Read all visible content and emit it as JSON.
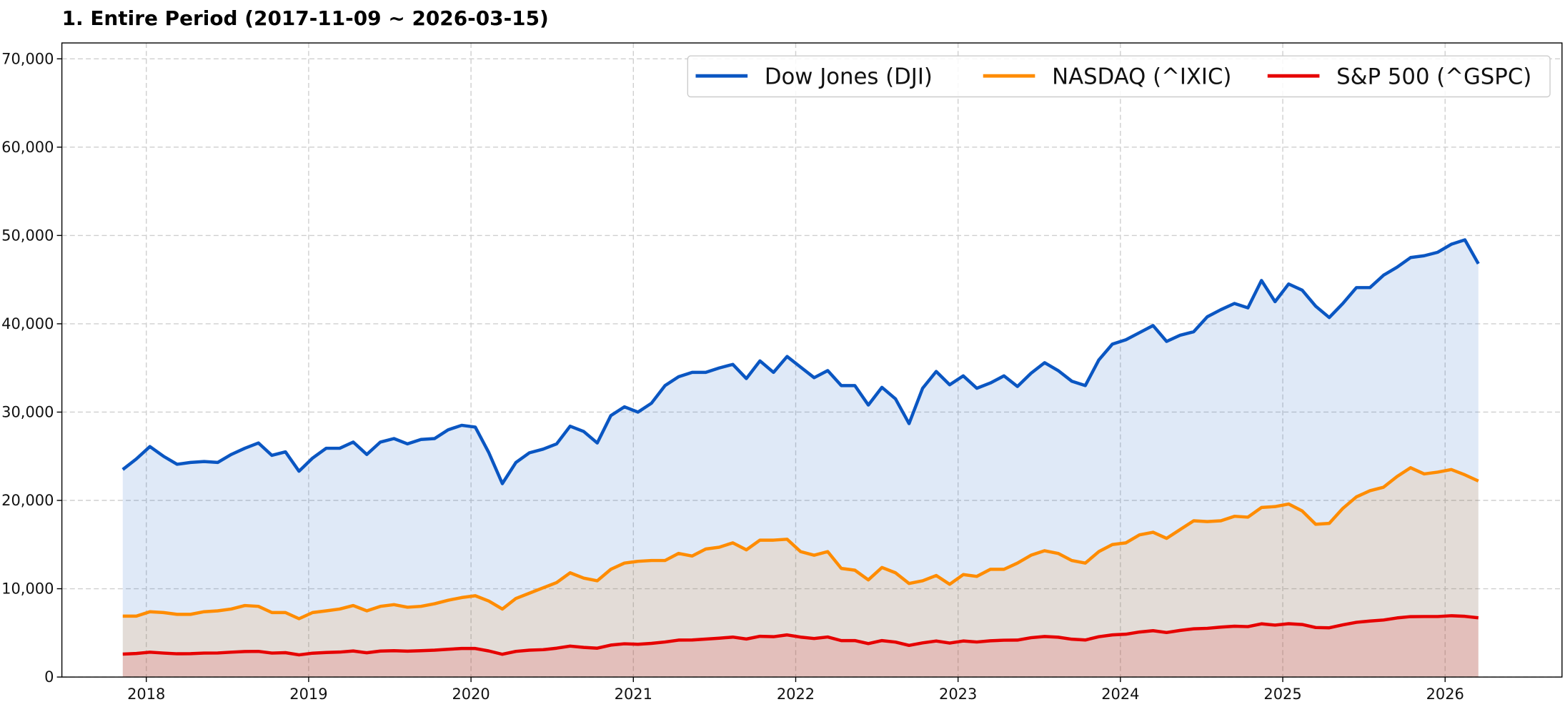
{
  "chart_data": {
    "type": "area",
    "title": "1. Entire Period (2017-11-09 ~ 2026-03-15)",
    "xlabel": "",
    "ylabel": "",
    "x_start": "2017-11-09",
    "x_end": "2026-03-15",
    "frequency": "monthly (approximate readings)",
    "xlim": [
      2017.48,
      2026.72
    ],
    "ylim": [
      0,
      71800
    ],
    "grid": true,
    "legend_position": "top-right",
    "xticks": [
      2018,
      2019,
      2020,
      2021,
      2022,
      2023,
      2024,
      2025,
      2026
    ],
    "xtick_labels": [
      "2018",
      "2019",
      "2020",
      "2021",
      "2022",
      "2023",
      "2024",
      "2025",
      "2026"
    ],
    "yticks": [
      0,
      10000,
      20000,
      30000,
      40000,
      50000,
      60000,
      70000
    ],
    "ytick_labels": [
      "0",
      "10,000",
      "20,000",
      "30,000",
      "40,000",
      "50,000",
      "60,000",
      "70,000"
    ],
    "series": [
      {
        "name": "Dow Jones (DJI)",
        "color": "#0a56c2",
        "values": [
          23500,
          24700,
          26100,
          25000,
          24100,
          24300,
          24400,
          24300,
          25200,
          25900,
          26500,
          25100,
          25500,
          23300,
          24800,
          25900,
          25900,
          26600,
          25200,
          26600,
          27000,
          26400,
          26900,
          27000,
          28000,
          28500,
          28300,
          25400,
          21900,
          24300,
          25400,
          25800,
          26400,
          28400,
          27800,
          26500,
          29600,
          30600,
          30000,
          31000,
          33000,
          34000,
          34500,
          34500,
          35000,
          35400,
          33800,
          35800,
          34500,
          36300,
          35100,
          33900,
          34700,
          33000,
          33000,
          30800,
          32800,
          31500,
          28700,
          32700,
          34600,
          33100,
          34100,
          32700,
          33300,
          34100,
          32900,
          34400,
          35600,
          34700,
          33500,
          33000,
          35900,
          37700,
          38200,
          39000,
          39800,
          38000,
          38700,
          39100,
          40800,
          41600,
          42300,
          41800,
          44900,
          42500,
          44500,
          43800,
          42000,
          40700,
          42300,
          44100,
          44100,
          45500,
          46400,
          47500,
          47700,
          48100,
          49000,
          49500,
          46800
        ]
      },
      {
        "name": "NASDAQ (^IXIC)",
        "color": "#ff8c00",
        "values": [
          6900,
          6900,
          7400,
          7300,
          7100,
          7100,
          7400,
          7500,
          7700,
          8100,
          8000,
          7300,
          7300,
          6600,
          7300,
          7500,
          7700,
          8100,
          7500,
          8000,
          8200,
          7900,
          8000,
          8300,
          8700,
          9000,
          9200,
          8600,
          7700,
          8900,
          9500,
          10100,
          10700,
          11800,
          11200,
          10900,
          12200,
          12900,
          13100,
          13200,
          13200,
          14000,
          13700,
          14500,
          14700,
          15200,
          14400,
          15500,
          15500,
          15600,
          14200,
          13800,
          14200,
          12300,
          12100,
          11000,
          12400,
          11800,
          10600,
          10900,
          11500,
          10500,
          11600,
          11400,
          12200,
          12200,
          12900,
          13800,
          14300,
          14000,
          13200,
          12900,
          14200,
          15000,
          15200,
          16100,
          16400,
          15700,
          16700,
          17700,
          17600,
          17700,
          18200,
          18100,
          19200,
          19300,
          19600,
          18800,
          17300,
          17400,
          19100,
          20400,
          21100,
          21500,
          22700,
          23700,
          23000,
          23200,
          23500,
          22900,
          22200
        ]
      },
      {
        "name": "S&P 500 (^GSPC)",
        "color": "#e60000",
        "values": [
          2600,
          2670,
          2820,
          2710,
          2640,
          2650,
          2710,
          2720,
          2820,
          2900,
          2910,
          2710,
          2760,
          2510,
          2700,
          2780,
          2830,
          2950,
          2750,
          2940,
          2980,
          2930,
          2980,
          3040,
          3140,
          3230,
          3230,
          2950,
          2580,
          2910,
          3040,
          3100,
          3270,
          3500,
          3360,
          3270,
          3620,
          3760,
          3710,
          3810,
          3970,
          4180,
          4200,
          4300,
          4400,
          4520,
          4310,
          4610,
          4570,
          4770,
          4520,
          4370,
          4530,
          4130,
          4130,
          3790,
          4130,
          3960,
          3590,
          3870,
          4080,
          3840,
          4080,
          3970,
          4110,
          4170,
          4180,
          4450,
          4590,
          4510,
          4290,
          4190,
          4570,
          4770,
          4850,
          5100,
          5250,
          5040,
          5280,
          5460,
          5520,
          5650,
          5760,
          5710,
          6030,
          5880,
          6040,
          5950,
          5610,
          5570,
          5910,
          6200,
          6340,
          6460,
          6690,
          6840,
          6850,
          6850,
          6940,
          6880,
          6700
        ]
      }
    ]
  }
}
